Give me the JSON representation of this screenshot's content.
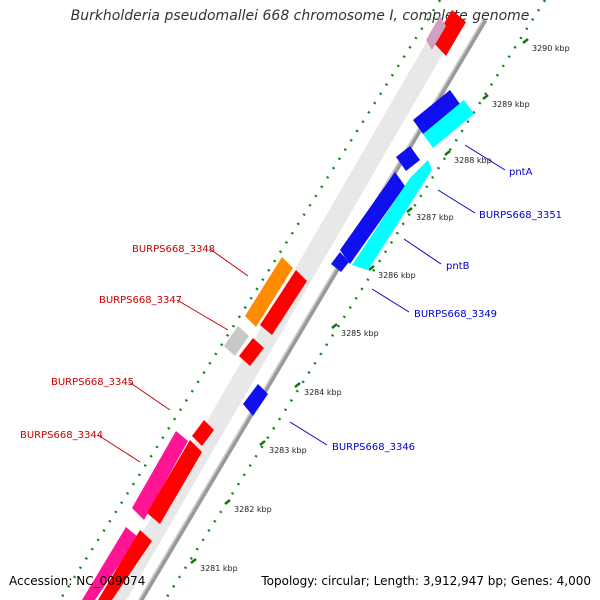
{
  "title": "Burkholderia pseudomallei 668 chromosome I, complete genome",
  "footer": {
    "accession": "Accession: NC_009074",
    "summary": "Topology: circular; Length: 3,912,947 bp; Genes: 4,000"
  },
  "ticks": [
    "3290 kbp",
    "3289 kbp",
    "3288 kbp",
    "3287 kbp",
    "3286 kbp",
    "3285 kbp",
    "3284 kbp",
    "3283 kbp",
    "3282 kbp",
    "3281 kbp"
  ],
  "labels_reverse": [
    "BURPS668_3348",
    "BURPS668_3347",
    "BURPS668_3345",
    "BURPS668_3344"
  ],
  "labels_forward": [
    "pntA",
    "BURPS668_3351",
    "pntB",
    "BURPS668_3349",
    "BURPS668_3346"
  ],
  "colors": {
    "forward_cds": "#0000dd",
    "forward_highlight": "#00ffff",
    "reverse_cds": "#ff0000",
    "reverse_pink": "#ff1493",
    "reverse_orange": "#ff8c00",
    "grey": "#c8c8c8",
    "tick": "#007700",
    "label_red": "#cc0000",
    "label_blue": "#0000cc"
  }
}
